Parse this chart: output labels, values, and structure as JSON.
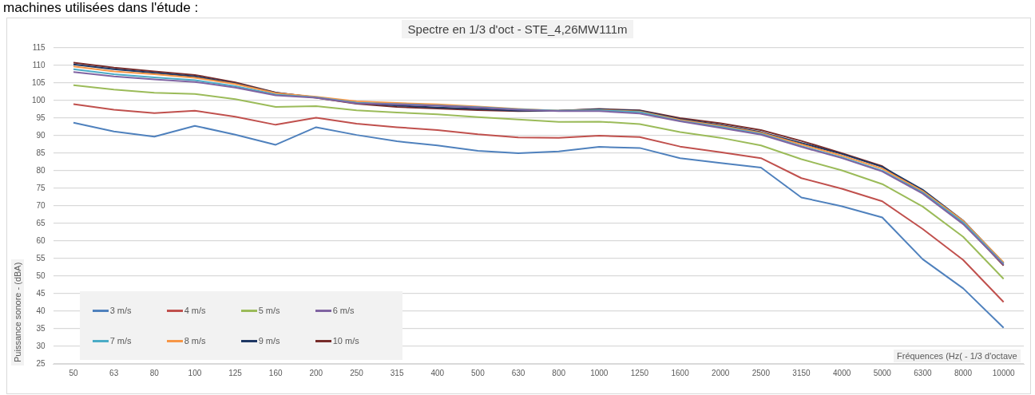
{
  "chart_data": {
    "type": "line",
    "title": "Spectre en 1/3 d'oct - STE_4,26MW111m",
    "xlabel": "Fréquences (Hz( - 1/3 d'octave",
    "ylabel": "Puissance sonore - (dBA)",
    "annotations": [
      "machines utilisées dans l'étude :"
    ],
    "categories": [
      "50",
      "63",
      "80",
      "100",
      "125",
      "160",
      "200",
      "250",
      "315",
      "400",
      "500",
      "630",
      "800",
      "1000",
      "1250",
      "1600",
      "2000",
      "2500",
      "3150",
      "4000",
      "5000",
      "6300",
      "8000",
      "10000"
    ],
    "series": [
      {
        "name": "3 m/s",
        "color": "#4f81bd",
        "values": [
          93.7,
          91.2,
          89.7,
          92.8,
          90.3,
          87.4,
          92.4,
          90.2,
          88.4,
          87.2,
          85.7,
          85.0,
          85.5,
          86.8,
          86.5,
          83.6,
          82.2,
          80.9,
          72.4,
          69.9,
          66.7,
          54.8,
          46.5,
          35.3
        ]
      },
      {
        "name": "4 m/s",
        "color": "#c0504d",
        "values": [
          99.0,
          97.4,
          96.4,
          97.1,
          95.4,
          93.1,
          95.1,
          93.4,
          92.4,
          91.6,
          90.4,
          89.5,
          89.4,
          90.0,
          89.6,
          86.9,
          85.3,
          83.6,
          77.9,
          74.9,
          71.3,
          63.4,
          54.6,
          42.6
        ]
      },
      {
        "name": "5 m/s",
        "color": "#9bbb59",
        "values": [
          104.4,
          103.1,
          102.2,
          101.9,
          100.4,
          98.2,
          98.4,
          97.2,
          96.6,
          96.1,
          95.3,
          94.6,
          93.9,
          94.0,
          93.3,
          91.0,
          89.4,
          87.2,
          83.3,
          80.1,
          76.2,
          69.8,
          61.2,
          49.2
        ]
      },
      {
        "name": "6 m/s",
        "color": "#8064a2",
        "values": [
          108.1,
          106.9,
          106.0,
          105.3,
          103.7,
          101.5,
          100.8,
          99.2,
          98.9,
          98.5,
          98.0,
          97.4,
          97.0,
          97.0,
          96.3,
          94.1,
          92.2,
          90.3,
          86.8,
          83.6,
          79.8,
          73.5,
          64.8,
          53.2
        ]
      },
      {
        "name": "7 m/s",
        "color": "#4bacc6",
        "values": [
          108.9,
          107.5,
          106.6,
          105.8,
          104.1,
          101.7,
          100.9,
          99.4,
          99.0,
          98.6,
          98.1,
          97.5,
          97.1,
          97.2,
          96.7,
          94.2,
          92.5,
          90.5,
          87.0,
          83.8,
          80.0,
          73.8,
          65.3,
          53.5
        ]
      },
      {
        "name": "8 m/s",
        "color": "#f79646",
        "values": [
          109.7,
          108.3,
          107.5,
          106.5,
          104.7,
          102.1,
          101.1,
          99.8,
          99.3,
          98.9,
          98.3,
          97.6,
          97.1,
          97.3,
          96.9,
          94.5,
          92.8,
          90.8,
          87.5,
          84.3,
          80.6,
          74.2,
          65.7,
          53.9
        ]
      },
      {
        "name": "9 m/s",
        "color": "#1f3864",
        "values": [
          110.3,
          108.9,
          107.9,
          106.9,
          104.9,
          102.2,
          100.9,
          99.4,
          98.6,
          98.0,
          97.6,
          97.1,
          97.1,
          97.5,
          97.1,
          94.7,
          93.0,
          91.0,
          87.9,
          84.8,
          81.1,
          74.6,
          65.8,
          53.7
        ]
      },
      {
        "name": "10 m/s",
        "color": "#772c2a",
        "values": [
          110.8,
          109.4,
          108.3,
          107.3,
          105.2,
          102.3,
          100.8,
          99.1,
          98.2,
          97.7,
          97.3,
          97.0,
          97.1,
          97.6,
          97.2,
          95.0,
          93.5,
          91.6,
          88.5,
          85.0,
          81.3,
          73.7,
          65.2,
          53.0
        ]
      }
    ],
    "ylim": [
      25,
      115
    ],
    "yticks": [
      25,
      30,
      35,
      40,
      45,
      50,
      55,
      60,
      65,
      70,
      75,
      80,
      85,
      90,
      95,
      100,
      105,
      110,
      115
    ],
    "grid": "y",
    "legend": "bottom left",
    "marker": "none",
    "line_style": "solid"
  }
}
